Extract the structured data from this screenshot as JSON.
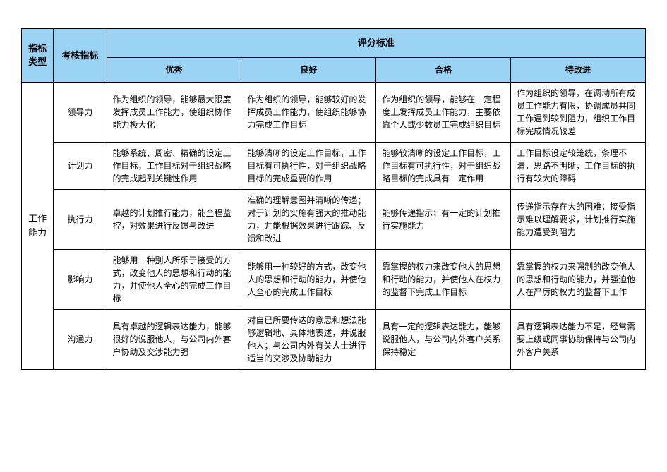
{
  "table": {
    "headers": {
      "type": "指标类型",
      "indicator": "考核指标",
      "scoring": "评分标准",
      "excellent": "优秀",
      "good": "良好",
      "pass": "合格",
      "improve": "待改进"
    },
    "colors": {
      "header_bg": "#9bd3f5",
      "border": "#000000",
      "cell_bg": "#ffffff",
      "text": "#000000"
    },
    "font_sizes": {
      "header": 13,
      "cell": 12
    },
    "category": "工作能力",
    "rows": [
      {
        "indicator": "领导力",
        "excellent": "作为组织的领导，能够最大限度发挥成员工作能力，使组织协作能力极大化",
        "good": "作为组织的领导，能够较好的发挥成员工作能力，使组织能够协力完成工作目标",
        "pass": "作为组织的领导，能够在一定程度上发挥成员工作能力，主要依靠个人或少数员工完成组织目标",
        "improve": "作为组织的领导，在调动所有成员工作能力有限，协调成员共同工作遇到较到阻力，组织工作目标完成情况较差"
      },
      {
        "indicator": "计划力",
        "excellent": "能够系统、周密、精确的设定工作目标，工作目标对于组织战略的完成起到关键性作用",
        "good": "能够清晰的设定工作目标，工作目标有可执行性，对于组织战略目标的完成重要的作用",
        "pass": "能够较清晰的设定工作目标，工作目标有可执行性，对于组织战略目标的完成具有一定作用",
        "improve": "工作目标设定较笼统，条理不清，思路不明晰，工作目标的执行有较大的障碍"
      },
      {
        "indicator": "执行力",
        "excellent": "卓越的计划推行能力，能全程监控，对效果进行反馈与改进",
        "good": "准确的理解意图并清晰的传递；对于计划的实施有强大的推动能力，并能根据效果进行跟踪、反馈和改进",
        "pass": "能够传递指示；有一定的计划推行实施能力",
        "improve": "传递指示存在大的困难；接受指示难以理解要求，计划推行实施能力遭受到阻力"
      },
      {
        "indicator": "影响力",
        "excellent": "能够用一种别人所乐于接受的方式，改变他人的思想和行动的能力，并使他人全心的完成工作目标",
        "good": "能够用一种较好的方式，改变他人的思想和行动的能力，并使他人全心的完成工作目标",
        "pass": "靠掌握的权力来改变他人的思想和行动的能力，并使他人在权力的监督下完成工作目标",
        "improve": "靠掌握的权力来强制的改变他人的思想和行动的能力，并强迫他人在严厉的权力的监督下工作"
      },
      {
        "indicator": "沟通力",
        "excellent": "具有卓越的逻辑表达能力，能够很好的说服他人，与公司内外客户协助及交涉能力强",
        "good": "对自已所要传达的意思和想法能够逻辑地、具体地表述，并说服他人；与公司内外有关人士进行适当的交涉及协助能力",
        "pass": "具有一定的逻辑表达能力，能够说服他人，与公司内外客户关系保持稳定",
        "improve": "具有逻辑表达能力不足，经常需要上级或同事协助保持与公司内外客户关系"
      }
    ]
  }
}
